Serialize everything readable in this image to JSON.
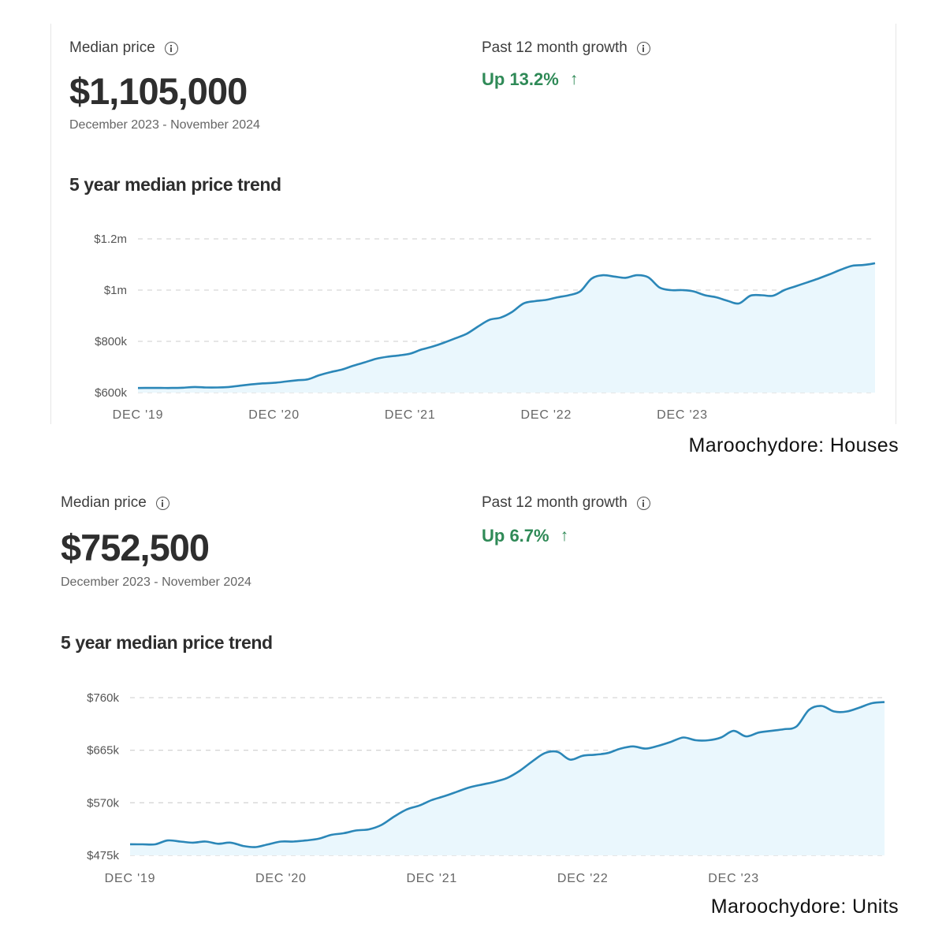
{
  "houses": {
    "median_label": "Median price",
    "median_value": "$1,105,000",
    "period": "December 2023 - November 2024",
    "growth_label": "Past 12 month growth",
    "growth_value": "Up 13.2%",
    "trend_title": "5 year median price trend",
    "caption": "Maroochydore: Houses"
  },
  "units": {
    "median_label": "Median price",
    "median_value": "$752,500",
    "period": "December 2023 - November 2024",
    "growth_label": "Past 12 month growth",
    "growth_value": "Up 6.7%",
    "trend_title": "5 year median price trend",
    "caption": "Maroochydore: Units"
  },
  "colors": {
    "line": "#2b87b8",
    "fill": "#eaf7fd",
    "grid": "#d6d6d6",
    "growth": "#2f8a57"
  },
  "icons": {
    "info": "info-icon",
    "growth_arrow": "arrow-up-icon"
  },
  "chart_data": [
    {
      "type": "area",
      "title": "5 year median price trend",
      "x_ticks": [
        "DEC '19",
        "DEC '20",
        "DEC '21",
        "DEC '22",
        "DEC '23"
      ],
      "y_ticks": [
        {
          "value": 600000,
          "label": "$600k"
        },
        {
          "value": 800000,
          "label": "$800k"
        },
        {
          "value": 1000000,
          "label": "$1m"
        },
        {
          "value": 1200000,
          "label": "$1.2m"
        }
      ],
      "ylim": [
        600000,
        1200000
      ],
      "xlim": [
        0,
        59
      ],
      "x_unit": "months since Dec 2019",
      "grid": true,
      "values": [
        618000,
        618000,
        618000,
        618000,
        619000,
        622000,
        620000,
        620000,
        622000,
        627000,
        632000,
        636000,
        638000,
        643000,
        648000,
        652000,
        668000,
        680000,
        690000,
        705000,
        718000,
        732000,
        740000,
        745000,
        752000,
        768000,
        780000,
        795000,
        812000,
        830000,
        858000,
        884000,
        893000,
        915000,
        948000,
        957000,
        962000,
        972000,
        980000,
        995000,
        1045000,
        1058000,
        1053000,
        1048000,
        1058000,
        1050000,
        1010000,
        1000000,
        1000000,
        995000,
        980000,
        972000,
        958000,
        948000,
        978000,
        980000,
        978000,
        1000000,
        1015000,
        1030000,
        1045000,
        1062000,
        1080000,
        1095000,
        1098000,
        1105000
      ]
    },
    {
      "type": "area",
      "title": "5 year median price trend",
      "x_ticks": [
        "DEC '19",
        "DEC '20",
        "DEC '21",
        "DEC '22",
        "DEC '23"
      ],
      "y_ticks": [
        {
          "value": 475000,
          "label": "$475k"
        },
        {
          "value": 570000,
          "label": "$570k"
        },
        {
          "value": 665000,
          "label": "$665k"
        },
        {
          "value": 760000,
          "label": "$760k"
        }
      ],
      "ylim": [
        475000,
        760000
      ],
      "grid": true,
      "values": [
        495000,
        495000,
        495000,
        502000,
        500000,
        498000,
        500000,
        496000,
        498000,
        492000,
        490000,
        495000,
        500000,
        500000,
        502000,
        505000,
        512000,
        515000,
        520000,
        522000,
        530000,
        545000,
        558000,
        565000,
        575000,
        582000,
        590000,
        598000,
        603000,
        608000,
        615000,
        628000,
        645000,
        660000,
        662000,
        648000,
        655000,
        657000,
        660000,
        668000,
        672000,
        668000,
        673000,
        680000,
        688000,
        683000,
        683000,
        688000,
        700000,
        690000,
        697000,
        700000,
        703000,
        708000,
        738000,
        745000,
        735000,
        735000,
        742000,
        750000,
        752000
      ]
    }
  ]
}
